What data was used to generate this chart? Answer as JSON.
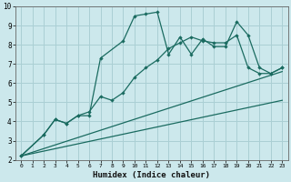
{
  "xlabel": "Humidex (Indice chaleur)",
  "background_color": "#cce8ec",
  "grid_color": "#aacfd4",
  "line_color": "#1a6b60",
  "xlim": [
    -0.5,
    23.5
  ],
  "ylim": [
    2,
    10
  ],
  "series1_x": [
    0,
    2,
    3,
    4,
    5,
    6,
    7,
    9,
    10,
    11,
    12,
    13,
    14,
    15,
    16,
    17,
    18,
    19,
    20,
    21,
    22,
    23
  ],
  "series1_y": [
    2.2,
    3.3,
    4.1,
    3.9,
    4.3,
    4.3,
    7.3,
    8.2,
    9.5,
    9.6,
    9.7,
    7.5,
    8.4,
    7.5,
    8.3,
    7.9,
    7.9,
    9.2,
    8.5,
    6.8,
    6.5,
    6.8
  ],
  "series2_x": [
    0,
    2,
    3,
    4,
    5,
    6,
    7,
    8,
    9,
    10,
    11,
    12,
    13,
    14,
    15,
    16,
    17,
    18,
    19,
    20,
    21,
    22,
    23
  ],
  "series2_y": [
    2.2,
    3.3,
    4.1,
    3.9,
    4.3,
    4.5,
    5.3,
    5.1,
    5.5,
    6.3,
    6.8,
    7.2,
    7.8,
    8.1,
    8.4,
    8.2,
    8.1,
    8.1,
    8.5,
    6.8,
    6.5,
    6.5,
    6.8
  ],
  "series3_x": [
    0,
    23
  ],
  "series3_y": [
    2.2,
    6.6
  ],
  "series4_x": [
    0,
    23
  ],
  "series4_y": [
    2.2,
    5.1
  ]
}
